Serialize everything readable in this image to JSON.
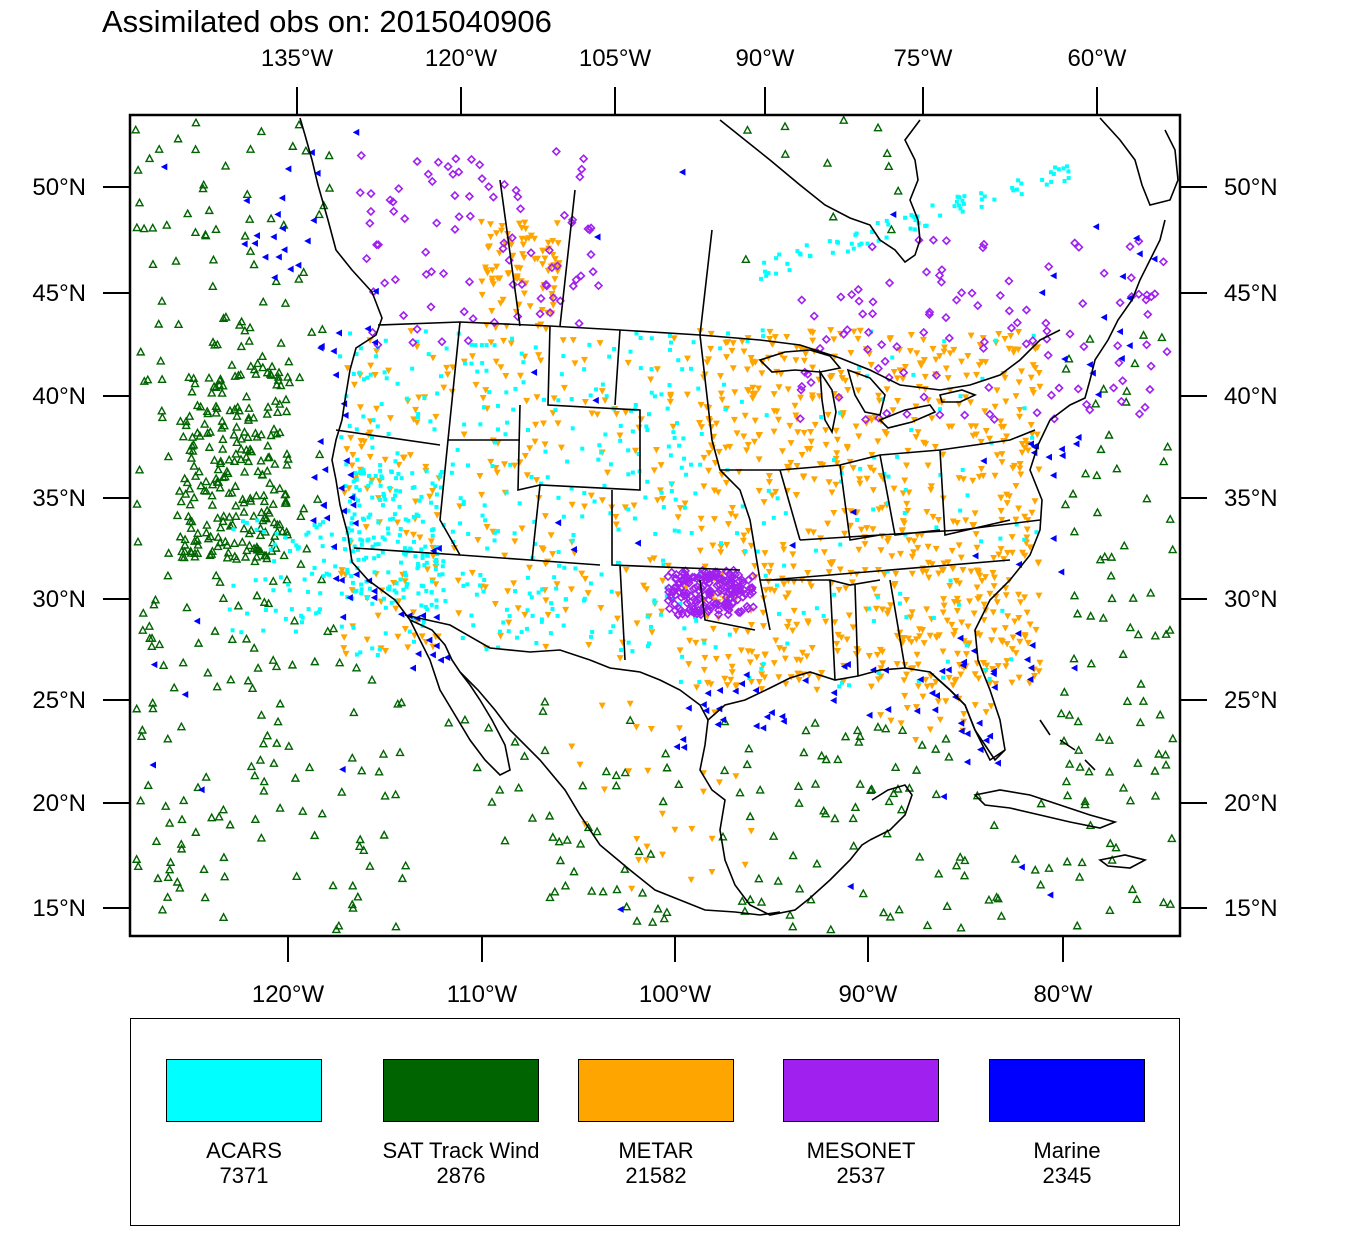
{
  "title": "Assimilated obs on: 2015040906",
  "axes": {
    "top_lon_labels": [
      "135°W",
      "120°W",
      "105°W",
      "90°W",
      "75°W",
      "60°W"
    ],
    "bottom_lon_labels": [
      "120°W",
      "110°W",
      "100°W",
      "90°W",
      "80°W"
    ],
    "left_lat_labels": [
      "50°N",
      "45°N",
      "40°N",
      "35°N",
      "30°N",
      "25°N",
      "20°N",
      "15°N"
    ],
    "right_lat_labels": [
      "50°N",
      "45°N",
      "40°N",
      "35°N",
      "30°N",
      "25°N",
      "20°N",
      "15°N"
    ]
  },
  "legend": [
    {
      "label": "ACARS",
      "count": "7371",
      "color": "#00ffff",
      "marker": "square"
    },
    {
      "label": "SAT Track Wind",
      "count": "2876",
      "color": "#006400",
      "marker": "triangle-up"
    },
    {
      "label": "METAR",
      "count": "21582",
      "color": "#ffa500",
      "marker": "triangle-down"
    },
    {
      "label": "MESONET",
      "count": "2537",
      "color": "#a020f0",
      "marker": "diamond"
    },
    {
      "label": "Marine",
      "count": "2345",
      "color": "#0000ff",
      "marker": "triangle-left"
    }
  ],
  "colors": {
    "land_outline": "#000000",
    "background": "#ffffff"
  }
}
